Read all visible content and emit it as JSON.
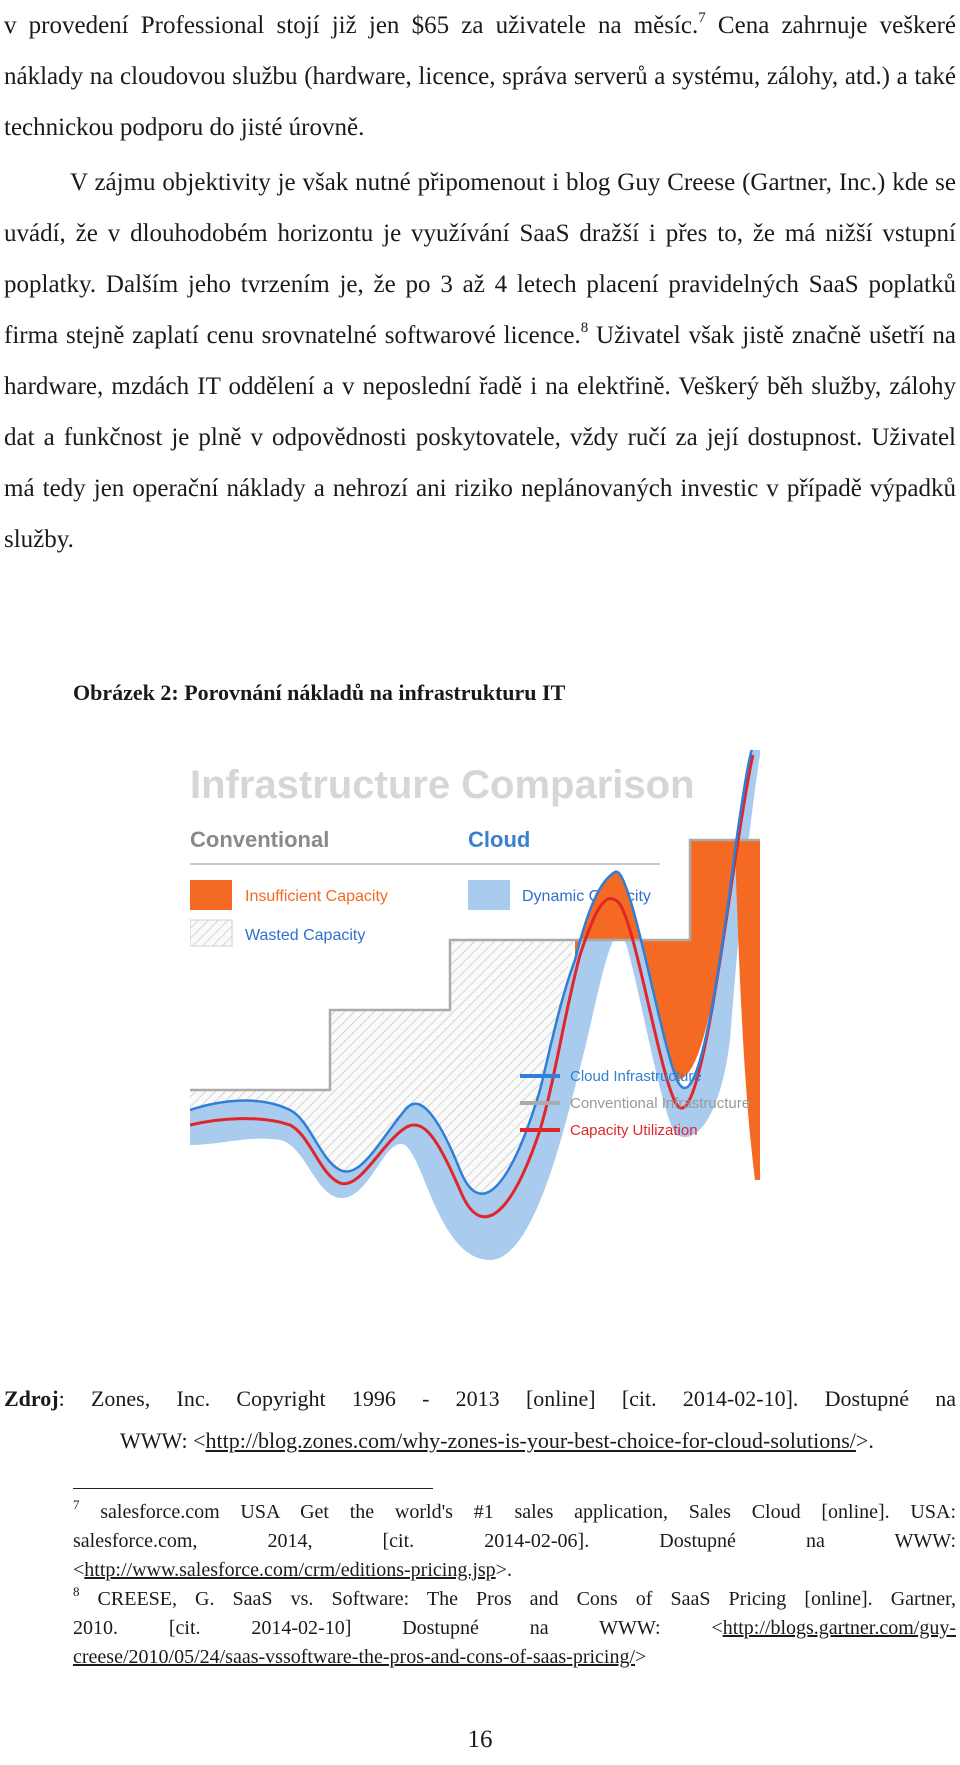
{
  "para1": {
    "line1_pre": "v provedení Professional stojí již jen $65 za uživatele na měsíc.",
    "fn_ref": "7",
    "line1_post": " Cena zahrnuje veškeré náklady na cloudovou službu (hardware, licence, správa serverů a systému, zálohy, atd.) a také technickou podporu do jisté úrovně."
  },
  "para2": {
    "text_a": "V zájmu objektivity je však nutné připomenout i blog Guy Creese (Gartner, Inc.) kde se uvádí, že v dlouhodobém horizontu je využívání SaaS dražší i přes to, že má nižší vstupní poplatky. Dalším jeho tvrzením je, že po 3 až 4 letech placení pravidelných SaaS poplatků firma stejně zaplatí cenu srovnatelné softwarové licence.",
    "fn_ref": "8",
    "text_b": " Uživatel však jistě značně ušetří na hardware, mzdách IT oddělení a v neposlední řadě i na elektřině. Veškerý běh služby, zálohy dat a funkčnost je plně v odpovědnosti poskytovatele, vždy ručí za její dostupnost. Uživatel má tedy jen operační náklady a nehrozí ani riziko neplánovaných investic v případě výpadků služby."
  },
  "caption": "Obrázek 2: Porovnání nákladů na infrastrukturu IT",
  "figure": {
    "title": "Infrastructure Comparison",
    "conventional_label": "Conventional",
    "cloud_label": "Cloud",
    "legend_insufficient": "Insufficient Capacity",
    "legend_wasted": "Wasted Capacity",
    "legend_dynamic": "Dynamic Capacity",
    "line_cloud": "Cloud Infrastructure",
    "line_conventional": "Conventional Infrastructure",
    "line_utilization": "Capacity Utilization",
    "colors": {
      "title": "#d6d6d6",
      "heading": "#8a8a8a",
      "cloud_heading": "#3a7fd0",
      "insufficient": "#f46a23",
      "dynamic": "#a9cbee",
      "cloud_line": "#2f7fd6",
      "conventional_line": "#aaaaaa",
      "utilization_line": "#e0262a"
    }
  },
  "source": {
    "label": "Zdroj",
    "text": ": Zones, Inc. Copyright 1996 - 2013 [online] [cit. 2014-02-10]. Dostupné na",
    "www": "WWW: <",
    "url": "http://blog.zones.com/why-zones-is-your-best-choice-for-cloud-solutions/",
    "end": ">."
  },
  "footnote7": {
    "num": "7",
    "line1": " salesforce.com USA Get the world's #1 sales application, Sales Cloud [online]. USA:",
    "line2": "salesforce.com, 2014, [cit. 2014-02-06]. Dostupné na WWW:",
    "lt": "<",
    "url": "http://www.salesforce.com/crm/editions-pricing.jsp",
    "end": ">."
  },
  "footnote8": {
    "num": "8",
    "line1": " CREESE, G. SaaS vs. Software: The Pros and Cons of SaaS Pricing [online]. Gartner,",
    "line2_pre": "2010. [cit. 2014-02-10] Dostupné na WWW: <",
    "url1": "http://blogs.gartner.com/guy-",
    "url2": "creese/2010/05/24/saas-vssoftware-the-pros-and-cons-of-saas-pricing/",
    "end": ">"
  },
  "page_number": "16"
}
